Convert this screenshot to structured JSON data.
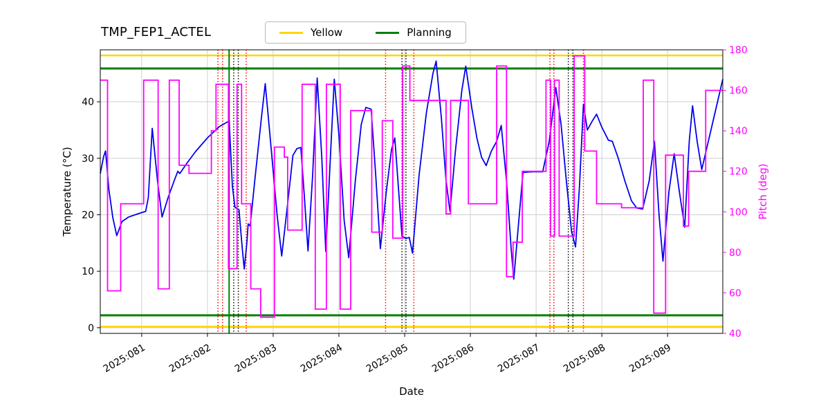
{
  "title": "TMP_FEP1_ACTEL",
  "legend": {
    "items": [
      {
        "label": "Yellow",
        "color": "#ffd700"
      },
      {
        "label": "Planning",
        "color": "#008000"
      }
    ]
  },
  "chart_data": {
    "type": "line",
    "title": "TMP_FEP1_ACTEL",
    "xlabel": "Date",
    "ylabel_left": "Temperature (°C)",
    "ylabel_right": "Pitch (deg)",
    "grid": true,
    "x_axis": {
      "lim": [
        80.37,
        89.84
      ],
      "ticks": [
        81,
        82,
        83,
        84,
        85,
        86,
        87,
        88,
        89
      ],
      "tick_labels": [
        "2025:081",
        "2025:082",
        "2025:083",
        "2025:084",
        "2025:085",
        "2025:086",
        "2025:087",
        "2025:088",
        "2025:089"
      ]
    },
    "y_left": {
      "lim": [
        -1,
        49.2
      ],
      "ticks": [
        0,
        10,
        20,
        30,
        40
      ],
      "color": "#000000"
    },
    "y_right": {
      "lim": [
        40,
        180
      ],
      "ticks": [
        40,
        60,
        80,
        100,
        120,
        140,
        160,
        180
      ],
      "color": "#ff00ff"
    },
    "series": [
      {
        "name": "temperature",
        "axis": "left",
        "color": "#0000ee",
        "style": "line",
        "points": [
          [
            80.37,
            27.3
          ],
          [
            80.42,
            30.3
          ],
          [
            80.45,
            31.3
          ],
          [
            80.5,
            24.5
          ],
          [
            80.56,
            19.5
          ],
          [
            80.62,
            16.3
          ],
          [
            80.7,
            18.8
          ],
          [
            80.8,
            19.6
          ],
          [
            80.95,
            20.2
          ],
          [
            81.06,
            20.6
          ],
          [
            81.1,
            23
          ],
          [
            81.16,
            35.3
          ],
          [
            81.24,
            26
          ],
          [
            81.31,
            19.6
          ],
          [
            81.4,
            23
          ],
          [
            81.5,
            26.2
          ],
          [
            81.55,
            27.7
          ],
          [
            81.58,
            27.3
          ],
          [
            81.68,
            29
          ],
          [
            81.82,
            31.2
          ],
          [
            82.0,
            33.6
          ],
          [
            82.18,
            35.6
          ],
          [
            82.33,
            36.6
          ],
          [
            82.38,
            25
          ],
          [
            82.42,
            21.3
          ],
          [
            82.48,
            20.9
          ],
          [
            82.53,
            14
          ],
          [
            82.56,
            10.4
          ],
          [
            82.6,
            15
          ],
          [
            82.62,
            18.4
          ],
          [
            82.65,
            18
          ],
          [
            82.72,
            26
          ],
          [
            82.82,
            37
          ],
          [
            82.88,
            43.2
          ],
          [
            82.96,
            33
          ],
          [
            83.06,
            20
          ],
          [
            83.13,
            12.7
          ],
          [
            83.22,
            22
          ],
          [
            83.3,
            30.5
          ],
          [
            83.36,
            31.7
          ],
          [
            83.42,
            31.9
          ],
          [
            83.47,
            24
          ],
          [
            83.53,
            13.6
          ],
          [
            83.6,
            27
          ],
          [
            83.67,
            44.2
          ],
          [
            83.74,
            30
          ],
          [
            83.8,
            13.5
          ],
          [
            83.87,
            30
          ],
          [
            83.93,
            44
          ],
          [
            84.0,
            34
          ],
          [
            84.08,
            19
          ],
          [
            84.15,
            12.4
          ],
          [
            84.25,
            26
          ],
          [
            84.34,
            36
          ],
          [
            84.41,
            39
          ],
          [
            84.49,
            38.7
          ],
          [
            84.56,
            27
          ],
          [
            84.63,
            14
          ],
          [
            84.72,
            24
          ],
          [
            84.8,
            31.5
          ],
          [
            84.85,
            33.6
          ],
          [
            84.91,
            24
          ],
          [
            84.96,
            16.2
          ],
          [
            85.02,
            15.8
          ],
          [
            85.07,
            16
          ],
          [
            85.12,
            13.2
          ],
          [
            85.22,
            27
          ],
          [
            85.33,
            38
          ],
          [
            85.43,
            45
          ],
          [
            85.48,
            47.2
          ],
          [
            85.56,
            37
          ],
          [
            85.63,
            26
          ],
          [
            85.69,
            20.6
          ],
          [
            85.77,
            31
          ],
          [
            85.87,
            42
          ],
          [
            85.93,
            46.3
          ],
          [
            86.02,
            39
          ],
          [
            86.1,
            33.5
          ],
          [
            86.17,
            30.2
          ],
          [
            86.24,
            28.7
          ],
          [
            86.32,
            31.3
          ],
          [
            86.4,
            33
          ],
          [
            86.47,
            35.8
          ],
          [
            86.55,
            26
          ],
          [
            86.62,
            14
          ],
          [
            86.66,
            8.6
          ],
          [
            86.73,
            18
          ],
          [
            86.8,
            27.5
          ],
          [
            86.95,
            27.6
          ],
          [
            87.1,
            27.6
          ],
          [
            87.2,
            33
          ],
          [
            87.3,
            42.5
          ],
          [
            87.38,
            36
          ],
          [
            87.46,
            26
          ],
          [
            87.54,
            17
          ],
          [
            87.6,
            14.3
          ],
          [
            87.66,
            25
          ],
          [
            87.72,
            39.5
          ],
          [
            87.78,
            35
          ],
          [
            87.85,
            36.5
          ],
          [
            87.92,
            37.8
          ],
          [
            88.0,
            35.5
          ],
          [
            88.1,
            33.2
          ],
          [
            88.16,
            33
          ],
          [
            88.25,
            30
          ],
          [
            88.35,
            26
          ],
          [
            88.45,
            22.5
          ],
          [
            88.53,
            21.2
          ],
          [
            88.62,
            21
          ],
          [
            88.72,
            26
          ],
          [
            88.8,
            33
          ],
          [
            88.87,
            20
          ],
          [
            88.93,
            11.8
          ],
          [
            89.02,
            24
          ],
          [
            89.1,
            30.8
          ],
          [
            89.18,
            24
          ],
          [
            89.26,
            17.8
          ],
          [
            89.33,
            33
          ],
          [
            89.38,
            39.3
          ],
          [
            89.45,
            33
          ],
          [
            89.52,
            28
          ],
          [
            89.62,
            33
          ],
          [
            89.72,
            38
          ],
          [
            89.84,
            44
          ]
        ]
      },
      {
        "name": "pitch",
        "axis": "right",
        "color": "#ff00ff",
        "style": "step-post",
        "points": [
          [
            80.37,
            165
          ],
          [
            80.48,
            61
          ],
          [
            80.68,
            104
          ],
          [
            81.03,
            165
          ],
          [
            81.25,
            62
          ],
          [
            81.42,
            165
          ],
          [
            81.57,
            123
          ],
          [
            81.72,
            119
          ],
          [
            82.06,
            140
          ],
          [
            82.13,
            163
          ],
          [
            82.32,
            72
          ],
          [
            82.45,
            163
          ],
          [
            82.52,
            104
          ],
          [
            82.66,
            62
          ],
          [
            82.81,
            48
          ],
          [
            83.02,
            132
          ],
          [
            83.17,
            127
          ],
          [
            83.22,
            91
          ],
          [
            83.44,
            163
          ],
          [
            83.64,
            52
          ],
          [
            83.81,
            163
          ],
          [
            84.02,
            52
          ],
          [
            84.18,
            150
          ],
          [
            84.5,
            90
          ],
          [
            84.66,
            145
          ],
          [
            84.82,
            87
          ],
          [
            84.97,
            172
          ],
          [
            85.08,
            155
          ],
          [
            85.63,
            99
          ],
          [
            85.7,
            155
          ],
          [
            85.97,
            104
          ],
          [
            86.4,
            172
          ],
          [
            86.55,
            68
          ],
          [
            86.65,
            85
          ],
          [
            86.79,
            120
          ],
          [
            87.15,
            165
          ],
          [
            87.22,
            88
          ],
          [
            87.28,
            165
          ],
          [
            87.35,
            88
          ],
          [
            87.58,
            177
          ],
          [
            87.74,
            130
          ],
          [
            87.92,
            104
          ],
          [
            88.3,
            102
          ],
          [
            88.63,
            165
          ],
          [
            88.79,
            50
          ],
          [
            88.97,
            128
          ],
          [
            89.24,
            93
          ],
          [
            89.32,
            120
          ],
          [
            89.58,
            160
          ],
          [
            89.84,
            160
          ]
        ]
      }
    ],
    "hlines": [
      {
        "y": 48.2,
        "color": "#ffd700",
        "width": 2.5,
        "name": "yellow-limit-high"
      },
      {
        "y": 0.2,
        "color": "#ffd700",
        "width": 2.5,
        "name": "yellow-limit-low"
      },
      {
        "y": 45.9,
        "color": "#008000",
        "width": 3,
        "name": "planning-limit-high"
      },
      {
        "y": 2.2,
        "color": "#008000",
        "width": 3,
        "name": "planning-limit-low"
      }
    ],
    "vlines": [
      {
        "x": 82.16,
        "color": "#ff0000",
        "style": "dotted",
        "name": "red-event-line"
      },
      {
        "x": 82.23,
        "color": "#ff0000",
        "style": "dotted",
        "name": "red-event-line"
      },
      {
        "x": 82.33,
        "color": "#008000",
        "style": "solid",
        "width": 2,
        "name": "green-event-line"
      },
      {
        "x": 82.4,
        "color": "#000000",
        "style": "dotted",
        "name": "black-event-line"
      },
      {
        "x": 82.47,
        "color": "#000000",
        "style": "dotted",
        "name": "black-event-line"
      },
      {
        "x": 82.59,
        "color": "#ff0000",
        "style": "dotted",
        "name": "red-event-line"
      },
      {
        "x": 84.71,
        "color": "#ff0000",
        "style": "dotted",
        "name": "red-event-line"
      },
      {
        "x": 84.96,
        "color": "#000000",
        "style": "dotted",
        "name": "black-event-line"
      },
      {
        "x": 85.02,
        "color": "#000000",
        "style": "dotted",
        "name": "black-event-line"
      },
      {
        "x": 85.14,
        "color": "#ff0000",
        "style": "dotted",
        "name": "red-event-line"
      },
      {
        "x": 87.21,
        "color": "#ff0000",
        "style": "dotted",
        "name": "red-event-line"
      },
      {
        "x": 87.27,
        "color": "#ff0000",
        "style": "dotted",
        "name": "red-event-line"
      },
      {
        "x": 87.49,
        "color": "#000000",
        "style": "dotted",
        "name": "black-event-line"
      },
      {
        "x": 87.56,
        "color": "#000000",
        "style": "dotted",
        "name": "black-event-line"
      },
      {
        "x": 87.72,
        "color": "#ff0000",
        "style": "dotted",
        "name": "red-event-line"
      }
    ]
  }
}
